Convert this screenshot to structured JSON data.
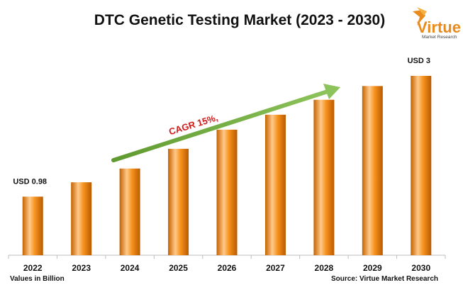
{
  "colors": {
    "bar_light": "#ffc98a",
    "bar_mid": "#f7931e",
    "bar_dark": "#c46200",
    "arrow": "#7ab648",
    "cagr_text": "#d11b1b",
    "logo": "#e88a1c"
  },
  "logo": {
    "big": "Virtue",
    "small": "Market Research",
    "icon": "bird-logo-icon"
  },
  "footer": {
    "units": "Values in Billion",
    "source": "Source: Virtue Market Research"
  },
  "annotation": {
    "text": "CAGR 15%,"
  },
  "chart_data": {
    "type": "bar",
    "title": "DTC Genetic Testing Market (2023 - 2030)",
    "categories": [
      "2022",
      "2023",
      "2024",
      "2025",
      "2026",
      "2027",
      "2028",
      "2029",
      "2030"
    ],
    "values": [
      0.98,
      1.22,
      1.45,
      1.78,
      2.1,
      2.35,
      2.6,
      2.83,
      3.0
    ],
    "data_labels": [
      {
        "index": 0,
        "text": "USD 0.98"
      },
      {
        "index": 8,
        "text": "USD 3"
      }
    ],
    "xlabel": "",
    "ylabel": "",
    "ylim": [
      0,
      3.2
    ],
    "grid": false,
    "legend": "none"
  }
}
